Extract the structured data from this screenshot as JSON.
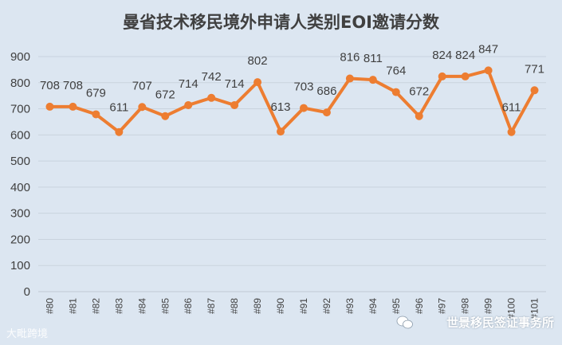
{
  "chart_data": {
    "type": "line",
    "title": "曼省技术移民境外申请人类别EOI邀请分数",
    "categories": [
      "#80",
      "#81",
      "#82",
      "#83",
      "#84",
      "#85",
      "#86",
      "#87",
      "#88",
      "#89",
      "#90",
      "#91",
      "#92",
      "#93",
      "#94",
      "#95",
      "#96",
      "#97",
      "#98",
      "#99",
      "#100",
      "#101"
    ],
    "values": [
      708,
      708,
      679,
      611,
      707,
      672,
      714,
      742,
      714,
      802,
      613,
      703,
      686,
      816,
      811,
      764,
      672,
      824,
      824,
      847,
      611,
      771
    ],
    "ylim": [
      0,
      900
    ],
    "yticks": [
      0,
      100,
      200,
      300,
      400,
      500,
      600,
      700,
      800,
      900
    ],
    "xlabel": "",
    "ylabel": "",
    "grid": true,
    "legend": "none",
    "series_color": "#ed7d31"
  },
  "watermarks": {
    "left": "大毗跨境",
    "right": "世景移民签证事务所"
  }
}
